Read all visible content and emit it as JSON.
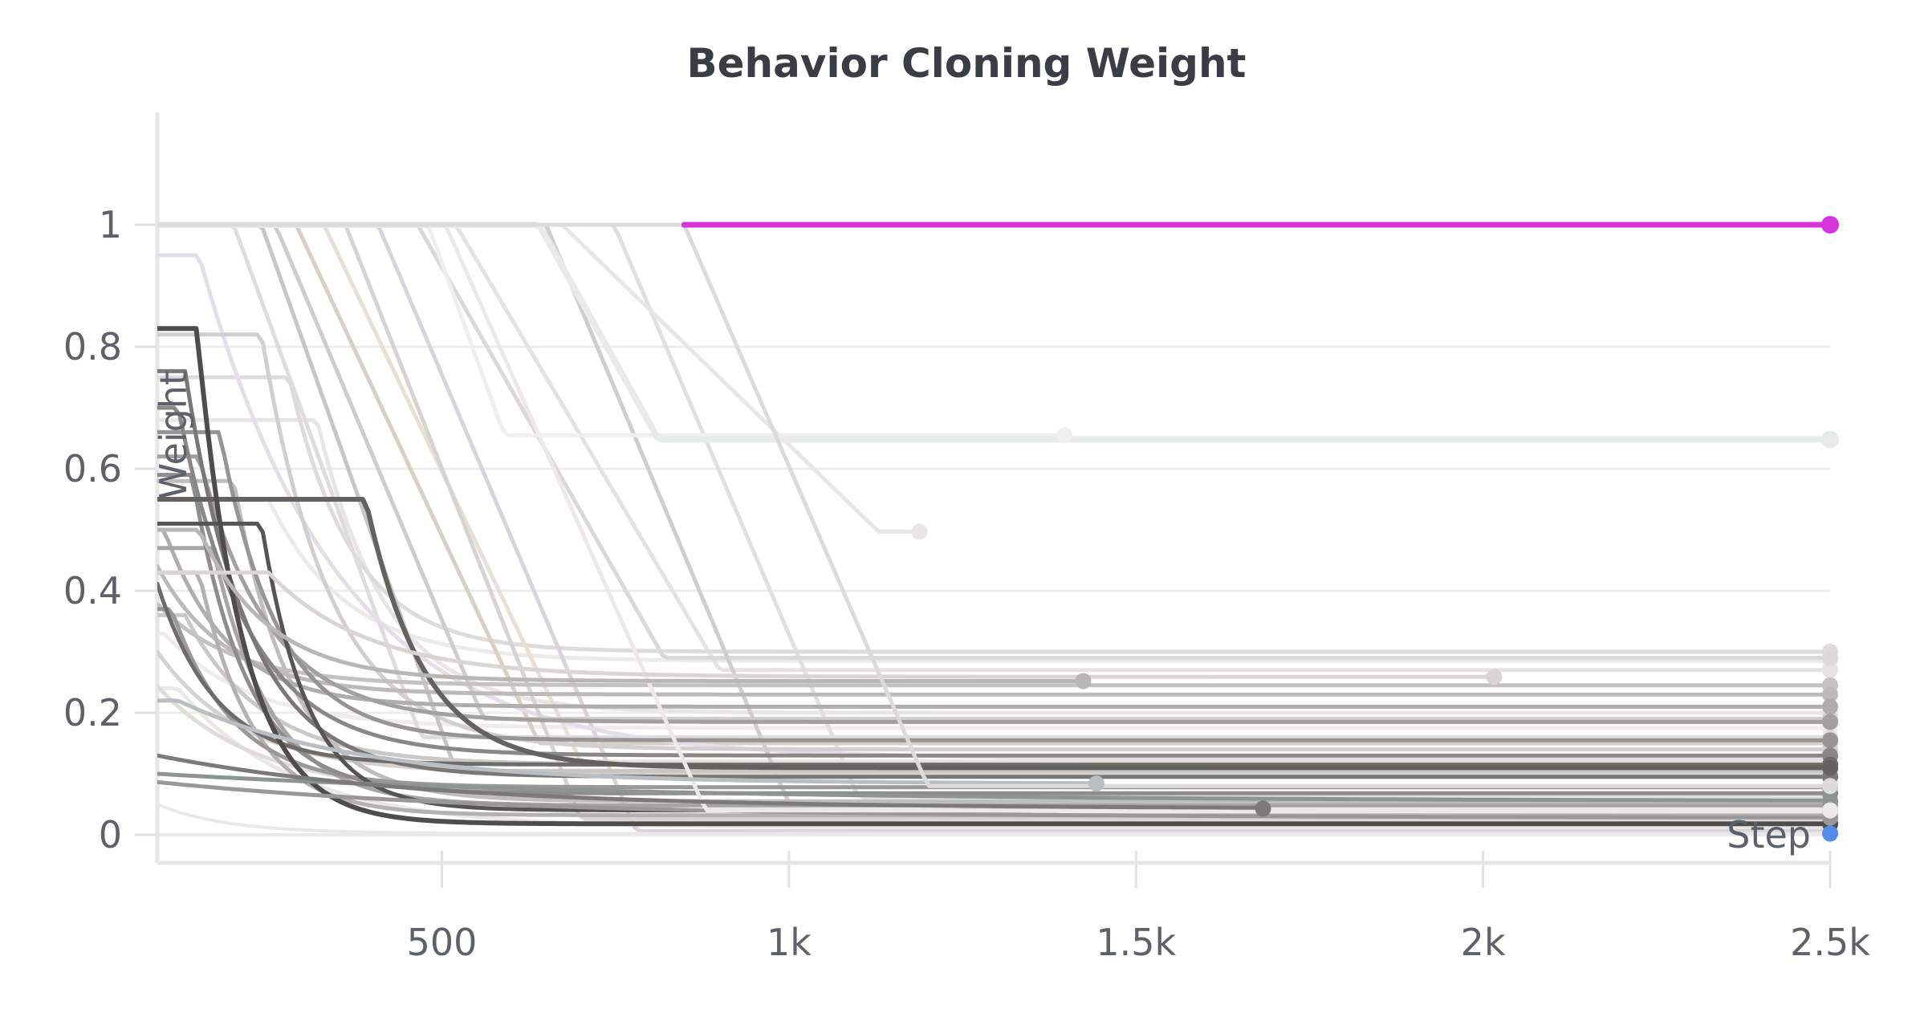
{
  "colors": {
    "background": "#ffffff",
    "grid": "#ededed",
    "zero_grid": "#eaeaea",
    "axis_frame": "#e6e6e6",
    "tick_mark": "#e2e2e2",
    "tick_text": "#5d616a",
    "title_text": "#3a3d43",
    "highlight_magenta": "#d633dc",
    "endpoint_blue": "#548bea"
  },
  "chart_data": {
    "type": "line",
    "title": "Behavior Cloning Weight",
    "xlabel": "Step",
    "ylabel": "Weight",
    "xlim": [
      90,
      2500
    ],
    "ylim": [
      0,
      1
    ],
    "grid": "horizontal-only",
    "legend": "none",
    "x_ticks": [
      {
        "value": 500,
        "label": "500"
      },
      {
        "value": 1000,
        "label": "1k"
      },
      {
        "value": 1500,
        "label": "1.5k"
      },
      {
        "value": 2000,
        "label": "2k"
      },
      {
        "value": 2500,
        "label": "2.5k"
      }
    ],
    "y_ticks": [
      {
        "value": 0,
        "label": "0"
      },
      {
        "value": 0.2,
        "label": "0.2"
      },
      {
        "value": 0.4,
        "label": "0.4"
      },
      {
        "value": 0.6,
        "label": "0.6"
      },
      {
        "value": 0.8,
        "label": "0.8"
      },
      {
        "value": 1,
        "label": "1"
      }
    ],
    "series_model": "weight(t) = start until flat_until; then exponential decay (decay_k) or linear ramp (until decay_until) toward final; flat until end_step; dot marks run end",
    "series": [
      {
        "color": "#efece9",
        "width": 5,
        "start": 0.33,
        "flat_until": 100,
        "decay_k": 0.008,
        "final": 0.175,
        "end_step": 2500,
        "end_dot": true
      },
      {
        "color": "#edebe8",
        "width": 5,
        "start": 0.55,
        "flat_until": 250,
        "decay_k": 0.009,
        "final": 0.285,
        "end_step": 2500,
        "end_dot": true
      },
      {
        "color": "#eae8e6",
        "width": 5,
        "start": 0.24,
        "flat_until": 120,
        "decay_k": 0.006,
        "final": 0.012,
        "end_step": 2500,
        "end_dot": true
      },
      {
        "color": "#e8e6e4",
        "width": 5,
        "start": 0.68,
        "flat_until": 320,
        "decay_k": 0.01,
        "final": 0.2,
        "end_step": 2500,
        "end_dot": true
      },
      {
        "color": "#e5e3e1",
        "width": 5,
        "start": 1,
        "flat_until": 520,
        "decay_until": 900,
        "final": 0.27,
        "end_step": 2500,
        "end_dot": true
      },
      {
        "color": "#e2e0de",
        "width": 5,
        "start": 1,
        "flat_until": 748,
        "decay_until": 1100,
        "final": 0.062,
        "end_step": 2500,
        "end_dot": true
      },
      {
        "color": "#e0ddd9",
        "width": 5,
        "start": 0.27,
        "flat_until": 70,
        "decay_k": 0.007,
        "final": 0.068,
        "end_step": 2500,
        "end_dot": true
      },
      {
        "color": "#dedcda",
        "width": 5,
        "start": 0.75,
        "flat_until": 280,
        "decay_k": 0.011,
        "final": 0.3,
        "end_step": 2500,
        "end_dot": true
      },
      {
        "color": "#dbd9d7",
        "width": 5,
        "start": 1,
        "flat_until": 465,
        "decay_until": 820,
        "final": 0.29,
        "end_step": 2500,
        "end_dot": true
      },
      {
        "color": "#dfdddb",
        "width": 5,
        "start": 1,
        "flat_until": 200,
        "decay_until": 470,
        "final": 0.16,
        "end_step": 2500,
        "end_dot": true
      },
      {
        "color": "#d8d0c6",
        "width": 5,
        "start": 1,
        "flat_until": 290,
        "decay_until": 640,
        "final": 0.15,
        "end_step": 2500,
        "end_dot": true
      },
      {
        "color": "#e6e0d8",
        "width": 5,
        "start": 1,
        "flat_until": 330,
        "decay_until": 700,
        "final": 0.12,
        "end_step": 2500,
        "end_dot": true
      },
      {
        "color": "#d8d3dd",
        "width": 5,
        "start": 1,
        "flat_until": 408,
        "decay_until": 780,
        "final": 0.006,
        "end_step": 2500,
        "end_dot": true
      },
      {
        "color": "#e3dee8",
        "width": 5,
        "start": 0.95,
        "flat_until": 150,
        "decay_k": 0.005,
        "final": 0.125,
        "end_step": 2500,
        "end_dot": true
      },
      {
        "color": "#d6d4d2",
        "width": 5,
        "start": 1,
        "flat_until": 361,
        "decay_until": 700,
        "final": 0.026,
        "end_step": 2500,
        "end_dot": true
      },
      {
        "color": "#d5d3d1",
        "width": 5,
        "start": 0.3,
        "flat_until": 90,
        "decay_k": 0.008,
        "final": 0.1,
        "end_step": 2500,
        "end_dot": true
      },
      {
        "color": "#d2d0ce",
        "width": 5,
        "start": 0.82,
        "flat_until": 240,
        "decay_k": 0.01,
        "final": 0.14,
        "end_step": 2500,
        "end_dot": true
      },
      {
        "color": "#cfcdcb",
        "width": 5,
        "start": 1,
        "flat_until": 260,
        "decay_until": 560,
        "final": 0.19,
        "end_step": 2500,
        "end_dot": true
      },
      {
        "color": "#d0cecc",
        "width": 5,
        "start": 1,
        "flat_until": 650,
        "decay_until": 1000,
        "final": 0.05,
        "end_step": 2500,
        "end_dot": true
      },
      {
        "color": "#cbc9c7",
        "width": 5,
        "start": 0.36,
        "flat_until": 130,
        "decay_k": 0.009,
        "final": 0.115,
        "end_step": 2500,
        "end_dot": true
      },
      {
        "color": "#c8c6c4",
        "width": 5,
        "start": 1,
        "flat_until": 240,
        "decay_until": 520,
        "final": 0.105,
        "end_step": 2500,
        "end_dot": true
      },
      {
        "color": "#c4c2c0",
        "width": 5,
        "start": 0.42,
        "flat_until": 60,
        "decay_k": 0.009,
        "final": 0.245,
        "end_step": 2500,
        "end_dot": true
      },
      {
        "color": "#c0bebc",
        "width": 5,
        "start": 0.58,
        "flat_until": 200,
        "decay_k": 0.012,
        "final": 0.055,
        "end_step": 2500,
        "end_dot": true
      },
      {
        "color": "#bcbab8",
        "width": 5,
        "start": 0.44,
        "flat_until": 90,
        "decay_k": 0.01,
        "final": 0.23,
        "end_step": 2500,
        "end_dot": true
      },
      {
        "color": "#b4b2b0",
        "width": 5,
        "start": 0.43,
        "flat_until": 150,
        "decay_k": 0.013,
        "final": 0.032,
        "end_step": 2500,
        "end_dot": true
      },
      {
        "color": "#b0aeac",
        "width": 5,
        "start": 0.5,
        "flat_until": 100,
        "decay_k": 0.011,
        "final": 0.21,
        "end_step": 2500,
        "end_dot": true
      },
      {
        "color": "#a8a6a4",
        "width": 5,
        "start": 0.47,
        "flat_until": 170,
        "decay_k": 0.012,
        "final": 0.048,
        "end_step": 2500,
        "end_dot": true
      },
      {
        "color": "#a3a19f",
        "width": 5,
        "start": 0.62,
        "flat_until": 150,
        "decay_k": 0.01,
        "final": 0.185,
        "end_step": 2500,
        "end_dot": true
      },
      {
        "color": "#9b9997",
        "width": 5,
        "start": 0.37,
        "flat_until": 110,
        "decay_k": 0.011,
        "final": 0.078,
        "end_step": 2500,
        "end_dot": true
      },
      {
        "color": "#979593",
        "width": 5,
        "start": 0.66,
        "flat_until": 180,
        "decay_k": 0.012,
        "final": 0.155,
        "end_step": 2500,
        "end_dot": true
      },
      {
        "color": "#8f8d8b",
        "width": 5,
        "start": 0.59,
        "flat_until": 140,
        "decay_k": 0.013,
        "final": 0.068,
        "end_step": 2500,
        "end_dot": true
      },
      {
        "color": "#8a8886",
        "width": 5,
        "start": 0.7,
        "flat_until": 120,
        "decay_k": 0.01,
        "final": 0.13,
        "end_step": 2500,
        "end_dot": true
      },
      {
        "color": "#7a7876",
        "width": 5,
        "start": 0.76,
        "flat_until": 130,
        "decay_k": 0.011,
        "final": 0.095,
        "end_step": 2500,
        "end_dot": true
      },
      {
        "color": "#6e6c6a",
        "width": 5,
        "start": 0.54,
        "flat_until": 60,
        "decay_k": 0.012,
        "final": 0.115,
        "end_step": 2500,
        "end_dot": true
      },
      {
        "color": "#64625f",
        "width": 6,
        "start": 0.55,
        "flat_until": 390,
        "decay_k": 0.012,
        "final": 0.11,
        "end_step": 2500,
        "end_dot": true
      },
      {
        "color": "#565553",
        "width": 5,
        "start": 0.51,
        "flat_until": 240,
        "decay_k": 0.015,
        "final": 0.04,
        "end_step": 2500,
        "end_dot": true
      },
      {
        "color": "#4f4d4b",
        "width": 6,
        "start": 0.83,
        "flat_until": 147,
        "decay_k": 0.015,
        "final": 0.018,
        "end_step": 2500,
        "end_dot": true
      },
      {
        "color": "#8e9490",
        "width": 5,
        "start": 0.1,
        "flat_until": 90,
        "decay_k": 0.0015,
        "final": 0.055,
        "end_step": 2500,
        "end_dot": true
      },
      {
        "color": "#9a9896",
        "width": 5,
        "start": 0.09,
        "flat_until": 60,
        "decay_k": 0.002,
        "final": 0.028,
        "end_step": 2500,
        "end_dot": true
      },
      {
        "color": "#ece9e6",
        "width": 5,
        "start": 1,
        "flat_until": 505,
        "decay_until": 880,
        "final": 0.04,
        "end_step": 2500,
        "end_dot": true
      },
      {
        "color": "#e9e7e5",
        "width": 5,
        "start": 1,
        "flat_until": 673,
        "decay_until": 1129,
        "final": 0.497,
        "end_step": 1188,
        "end_dot": true
      },
      {
        "color": "#f0efed",
        "width": 5,
        "start": 1,
        "flat_until": 480,
        "decay_until": 590,
        "final": 0.655,
        "end_step": 1397,
        "end_dot": true
      },
      {
        "color": "#e8ece8",
        "width": 8,
        "start": 1,
        "flat_until": 640,
        "decay_until": 812,
        "final": 0.648,
        "end_step": 2500,
        "end_dot": true
      },
      {
        "color": "#b9b7b5",
        "width": 5,
        "start": 0.5,
        "flat_until": 150,
        "decay_k": 0.01,
        "final": 0.252,
        "end_step": 1424,
        "end_dot": true
      },
      {
        "color": "#d9d5d3",
        "width": 5,
        "start": 0.43,
        "flat_until": 250,
        "decay_k": 0.007,
        "final": 0.259,
        "end_step": 2016,
        "end_dot": true
      },
      {
        "color": "#b9bec2",
        "width": 5,
        "start": 0.22,
        "flat_until": 120,
        "decay_k": 0.004,
        "final": 0.084,
        "end_step": 1443,
        "end_dot": true
      },
      {
        "color": "#7c7a78",
        "width": 5,
        "start": 0.13,
        "flat_until": 90,
        "decay_k": 0.0026,
        "final": 0.043,
        "end_step": 1683,
        "end_dot": true
      },
      {
        "color": "#dddbd9",
        "width": 5,
        "start": 1,
        "flat_until": 849,
        "decay_until": 1200,
        "final": 0.08,
        "end_step": 2500,
        "end_dot": true
      },
      {
        "color": "#e8e8e8",
        "width": 4,
        "start": 0.05,
        "flat_until": 90,
        "decay_k": 0.01,
        "final": 0.002,
        "end_step": 2500,
        "end_dot": true,
        "dot_color": "#548bea"
      },
      {
        "color": "#d633dc",
        "width": 7,
        "start": 1,
        "flat_until": 2500,
        "final": 1,
        "end_step": 2500,
        "end_dot": true,
        "draw_from": 849
      }
    ]
  }
}
